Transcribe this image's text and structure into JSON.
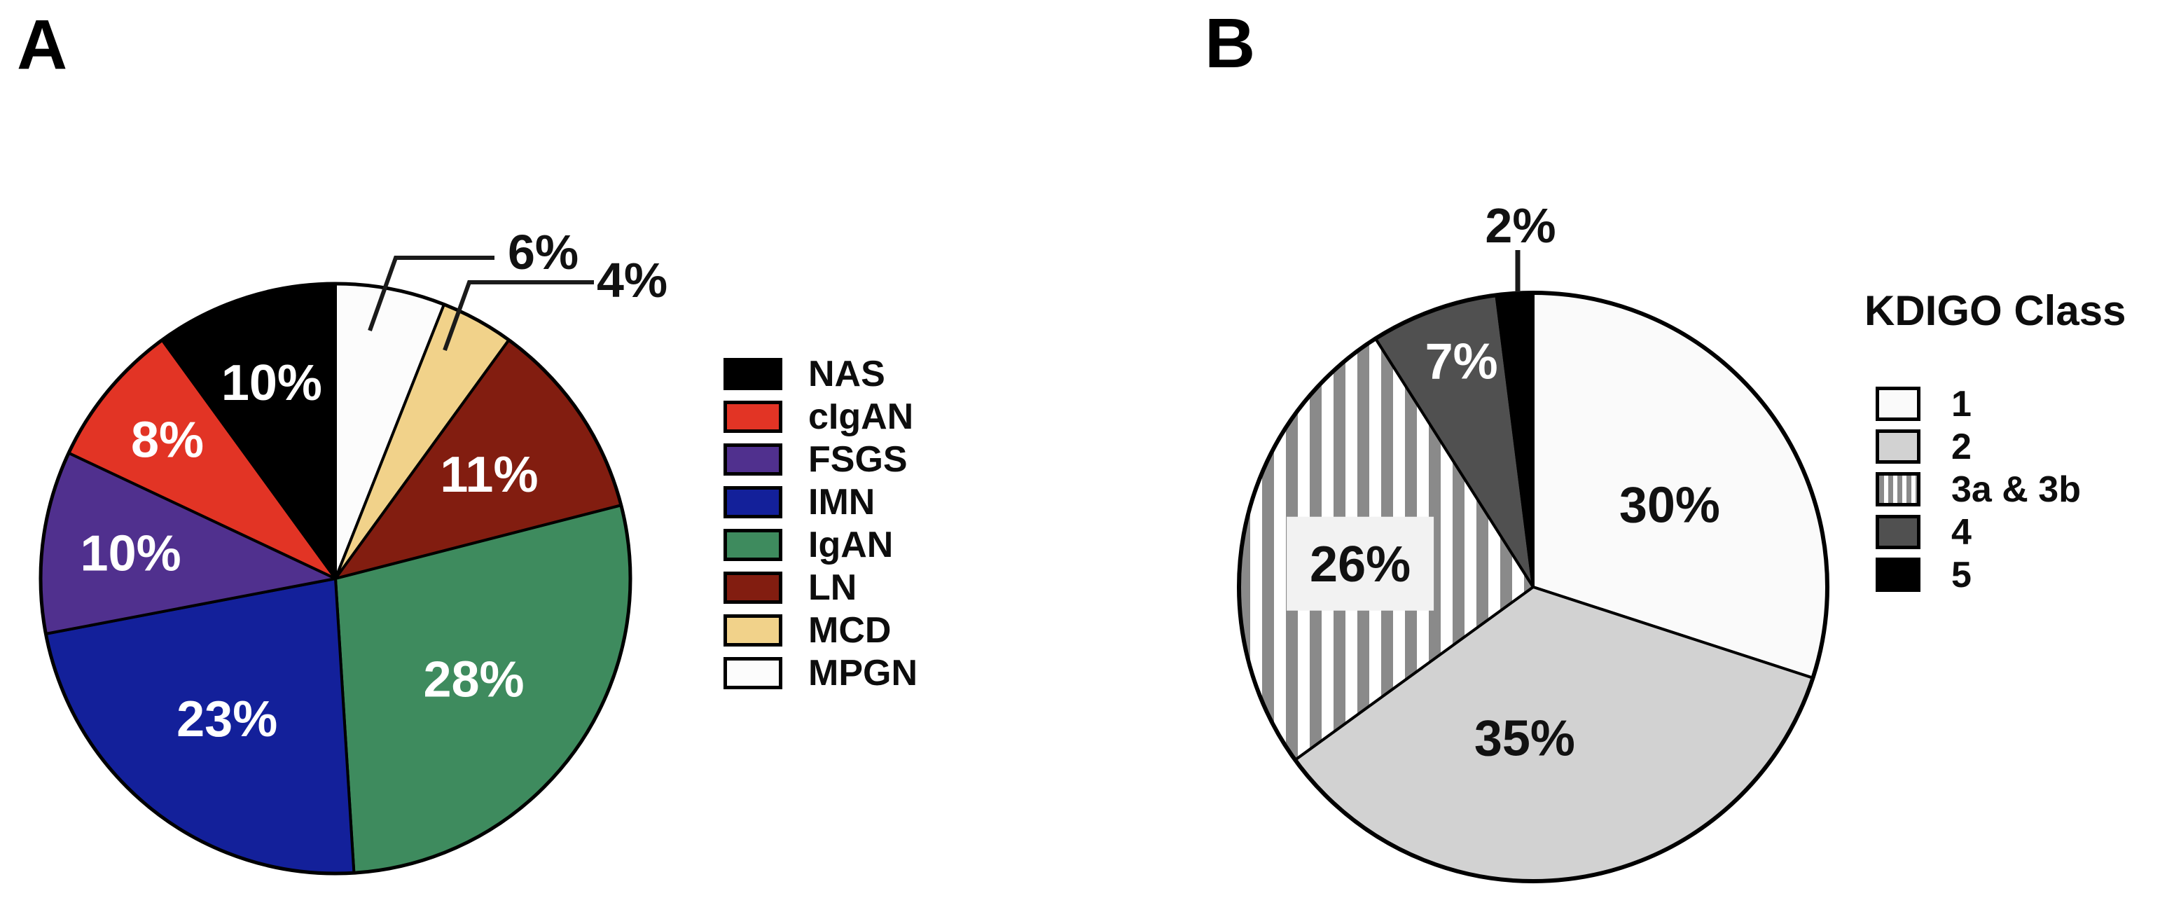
{
  "figure": {
    "background": "#ffffff",
    "panels": [
      {
        "label": "A",
        "legend": {
          "items": [
            {
              "label": "NAS",
              "fill": "#000000"
            },
            {
              "label": "cIgAN",
              "fill": "#e23425"
            },
            {
              "label": "FSGS",
              "fill": "#50308e"
            },
            {
              "label": "IMN",
              "fill": "#13209a"
            },
            {
              "label": "IgAN",
              "fill": "#3e8b5e"
            },
            {
              "label": "LN",
              "fill": "#821d10"
            },
            {
              "label": "MCD",
              "fill": "#f1d28a"
            },
            {
              "label": "MPGN",
              "fill": "#fcfcfc"
            }
          ]
        }
      },
      {
        "label": "B",
        "legend": {
          "title": "KDIGO Class",
          "items": [
            {
              "label": "1",
              "fill": "#fafafa"
            },
            {
              "label": "2",
              "fill": "#d2d2d2"
            },
            {
              "label": "3a & 3b",
              "fill": "stripes"
            },
            {
              "label": "4",
              "fill": "#505050"
            },
            {
              "label": "5",
              "fill": "#000000"
            }
          ]
        }
      }
    ]
  },
  "chart_data": [
    {
      "type": "pie",
      "panel": "A",
      "order": "clockwise from 12 o'clock",
      "legend_position": "right",
      "slices": [
        {
          "label": "MPGN",
          "value": 6,
          "display": "6%",
          "fill": "#fcfcfc",
          "label_color": "#111111",
          "label_outside": true
        },
        {
          "label": "MCD",
          "value": 4,
          "display": "4%",
          "fill": "#f1d28a",
          "label_color": "#111111",
          "label_outside": true
        },
        {
          "label": "LN",
          "value": 11,
          "display": "11%",
          "fill": "#821d10",
          "label_color": "#ffffff"
        },
        {
          "label": "IgAN",
          "value": 28,
          "display": "28%",
          "fill": "#3e8b5e",
          "label_color": "#ffffff"
        },
        {
          "label": "IMN",
          "value": 23,
          "display": "23%",
          "fill": "#13209a",
          "label_color": "#ffffff"
        },
        {
          "label": "FSGS",
          "value": 10,
          "display": "10%",
          "fill": "#50308e",
          "label_color": "#ffffff"
        },
        {
          "label": "cIgAN",
          "value": 8,
          "display": "8%",
          "fill": "#e23425",
          "label_color": "#ffffff"
        },
        {
          "label": "NAS",
          "value": 10,
          "display": "10%",
          "fill": "#000000",
          "label_color": "#ffffff"
        }
      ]
    },
    {
      "type": "pie",
      "panel": "B",
      "order": "clockwise from 12 o'clock",
      "legend_title": "KDIGO Class",
      "legend_position": "right",
      "slices": [
        {
          "label": "1",
          "value": 30,
          "display": "30%",
          "fill": "#fafafa",
          "label_color": "#111111"
        },
        {
          "label": "2",
          "value": 35,
          "display": "35%",
          "fill": "#d2d2d2",
          "label_color": "#111111"
        },
        {
          "label": "3a & 3b",
          "value": 26,
          "display": "26%",
          "fill": "stripes",
          "label_color": "#111111",
          "label_bg": "#f2f2f2"
        },
        {
          "label": "4",
          "value": 7,
          "display": "7%",
          "fill": "#505050",
          "label_color": "#ffffff"
        },
        {
          "label": "5",
          "value": 2,
          "display": "2%",
          "fill": "#000000",
          "label_color": "#111111",
          "label_outside": true
        }
      ]
    }
  ]
}
